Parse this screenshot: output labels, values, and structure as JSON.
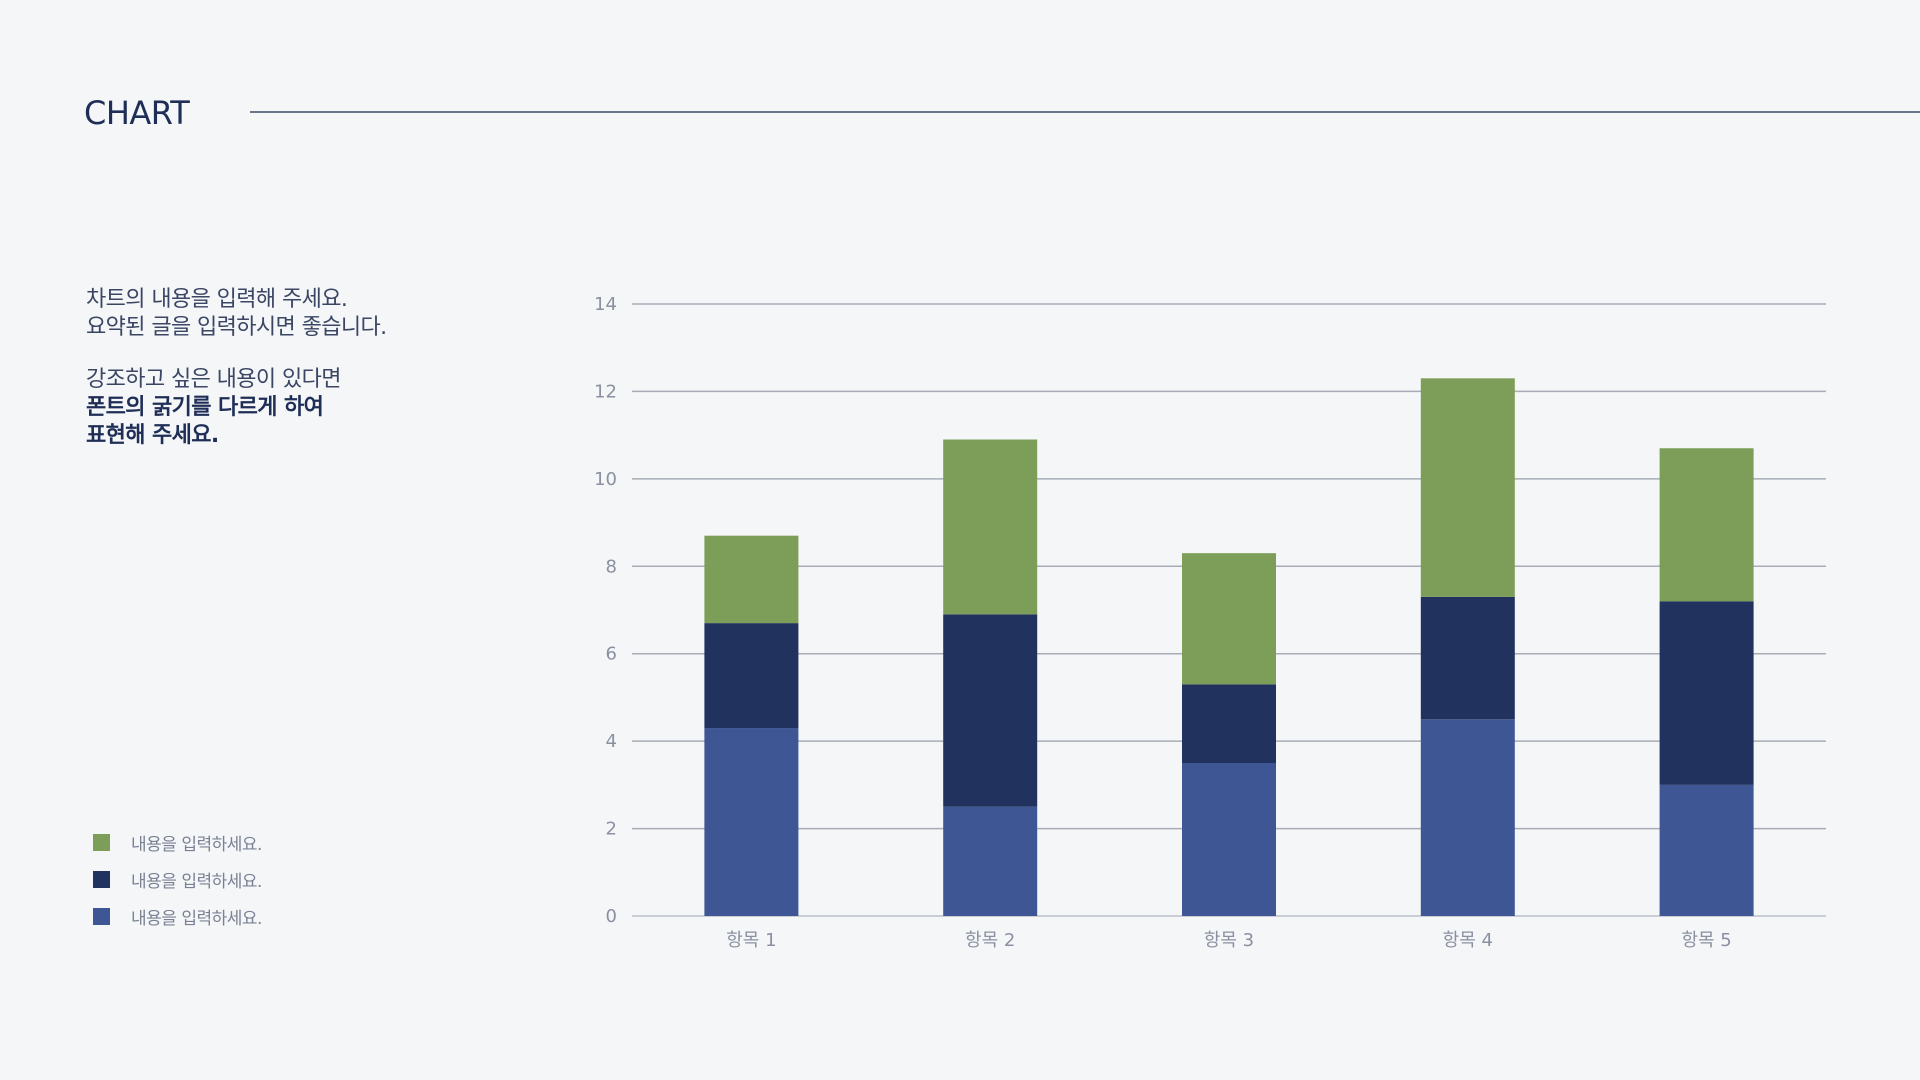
{
  "header": {
    "title": "CHART"
  },
  "description": {
    "line1": "차트의 내용을 입력해 주세요.",
    "line2": "요약된 글을 입력하시면 좋습니다.",
    "line3": "강조하고 싶은 내용이 있다면",
    "line4_bold": "폰트의 굵기를 다르게 하여",
    "line5_bold": "표현해 주세요."
  },
  "legend": {
    "items": [
      {
        "label": "내용을 입력하세요.",
        "color": "#7c9e58"
      },
      {
        "label": "내용을 입력하세요.",
        "color": "#21325e"
      },
      {
        "label": "내용을 입력하세요.",
        "color": "#3e5693"
      }
    ]
  },
  "chart_data": {
    "type": "bar",
    "stacked": true,
    "categories": [
      "항목 1",
      "항목 2",
      "항목 3",
      "항목 4",
      "항목 5"
    ],
    "series": [
      {
        "values": [
          4.3,
          2.5,
          3.5,
          4.5,
          3.0
        ],
        "color": "#3e5693"
      },
      {
        "values": [
          2.4,
          4.4,
          1.8,
          2.8,
          4.2
        ],
        "color": "#21325e"
      },
      {
        "values": [
          2.0,
          4.0,
          3.0,
          5.0,
          3.5
        ],
        "color": "#7c9e58"
      }
    ],
    "ylim": [
      0,
      14
    ],
    "yticks": [
      0,
      2,
      4,
      6,
      8,
      10,
      12,
      14
    ],
    "grid": true,
    "legend_position": "bottom-left"
  }
}
